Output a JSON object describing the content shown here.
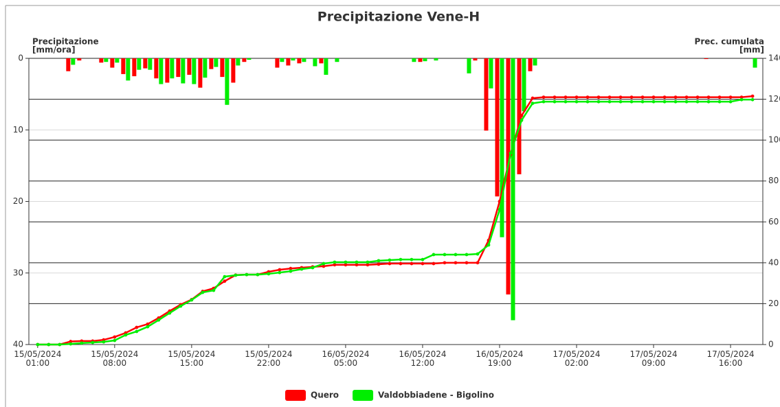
{
  "chart_data": {
    "type": "bar-line",
    "title": "Precipitazione Vene-H",
    "y_label": "Precipitazione",
    "y_unit": "[mm/ora]",
    "y2_label": "Prec. cumulata",
    "y2_unit": "[mm]",
    "ylim": [
      0,
      40
    ],
    "y_inverted": true,
    "yticks": [
      0,
      10,
      20,
      30,
      40
    ],
    "y2lim": [
      0,
      140
    ],
    "y2ticks": [
      0,
      20,
      40,
      60,
      80,
      100,
      120,
      140
    ],
    "grid": true,
    "legend": "bottom",
    "xlim": [
      "2024-05-15 00:12",
      "2024-05-17 18:56"
    ],
    "xticks": [
      {
        "value": "2024-05-15 01:00",
        "label": "15/05/2024 01:00"
      },
      {
        "value": "2024-05-15 08:00",
        "label": "15/05/2024 08:00"
      },
      {
        "value": "2024-05-15 15:00",
        "label": "15/05/2024 15:00"
      },
      {
        "value": "2024-05-15 22:00",
        "label": "15/05/2024 22:00"
      },
      {
        "value": "2024-05-16 05:00",
        "label": "16/05/2024 05:00"
      },
      {
        "value": "2024-05-16 12:00",
        "label": "16/05/2024 12:00"
      },
      {
        "value": "2024-05-16 19:00",
        "label": "16/05/2024 19:00"
      },
      {
        "value": "2024-05-17 02:00",
        "label": "17/05/2024 02:00"
      },
      {
        "value": "2024-05-17 09:00",
        "label": "17/05/2024 09:00"
      },
      {
        "value": "2024-05-17 16:00",
        "label": "17/05/2024 16:00"
      }
    ],
    "x": [
      "2024-05-15 01:00",
      "2024-05-15 02:00",
      "2024-05-15 03:00",
      "2024-05-15 04:00",
      "2024-05-15 05:00",
      "2024-05-15 06:00",
      "2024-05-15 07:00",
      "2024-05-15 08:00",
      "2024-05-15 09:00",
      "2024-05-15 10:00",
      "2024-05-15 11:00",
      "2024-05-15 12:00",
      "2024-05-15 13:00",
      "2024-05-15 14:00",
      "2024-05-15 15:00",
      "2024-05-15 16:00",
      "2024-05-15 17:00",
      "2024-05-15 18:00",
      "2024-05-15 19:00",
      "2024-05-15 20:00",
      "2024-05-15 21:00",
      "2024-05-15 22:00",
      "2024-05-15 23:00",
      "2024-05-16 00:00",
      "2024-05-16 01:00",
      "2024-05-16 02:00",
      "2024-05-16 03:00",
      "2024-05-16 04:00",
      "2024-05-16 05:00",
      "2024-05-16 06:00",
      "2024-05-16 07:00",
      "2024-05-16 08:00",
      "2024-05-16 09:00",
      "2024-05-16 10:00",
      "2024-05-16 11:00",
      "2024-05-16 12:00",
      "2024-05-16 13:00",
      "2024-05-16 14:00",
      "2024-05-16 15:00",
      "2024-05-16 16:00",
      "2024-05-16 17:00",
      "2024-05-16 18:00",
      "2024-05-16 19:00",
      "2024-05-16 20:00",
      "2024-05-16 21:00",
      "2024-05-16 22:00",
      "2024-05-16 23:00",
      "2024-05-17 00:00",
      "2024-05-17 01:00",
      "2024-05-17 02:00",
      "2024-05-17 03:00",
      "2024-05-17 04:00",
      "2024-05-17 05:00",
      "2024-05-17 06:00",
      "2024-05-17 07:00",
      "2024-05-17 08:00",
      "2024-05-17 09:00",
      "2024-05-17 10:00",
      "2024-05-17 11:00",
      "2024-05-17 12:00",
      "2024-05-17 13:00",
      "2024-05-17 14:00",
      "2024-05-17 15:00",
      "2024-05-17 16:00",
      "2024-05-17 17:00",
      "2024-05-17 18:00"
    ],
    "series": [
      {
        "name": "Quero",
        "color": "#ff0000",
        "values": [
          0,
          0,
          0,
          1.8,
          0.3,
          0,
          0.6,
          1.3,
          2.2,
          2.5,
          1.4,
          2.8,
          3.4,
          2.6,
          2.3,
          4.1,
          1.5,
          2.6,
          3.4,
          0.5,
          0,
          0,
          1.3,
          1.0,
          0.7,
          0,
          0.7,
          0,
          0,
          0,
          0,
          0,
          0,
          0,
          0,
          0.5,
          0,
          0,
          0,
          0,
          0.3,
          10.1,
          19.3,
          33,
          16.2,
          1.8,
          0,
          0,
          0,
          0,
          0,
          0,
          0,
          0,
          0,
          0,
          0,
          0,
          0,
          0,
          0,
          0.1,
          0,
          0,
          0,
          0
        ],
        "cumulative": [
          0,
          0,
          0,
          1.5,
          1.7,
          1.7,
          2.3,
          3.7,
          5.7,
          8.4,
          10,
          13,
          16.4,
          19.5,
          22,
          26,
          27.5,
          31,
          34,
          34.2,
          34.2,
          35.6,
          36.6,
          37.2,
          37.6,
          38,
          38.3,
          39,
          39,
          39,
          39,
          39.3,
          39.6,
          39.6,
          39.6,
          39.6,
          39.6,
          40,
          40,
          40,
          40,
          51,
          70,
          93,
          112,
          120.5,
          121,
          121,
          121,
          121,
          121,
          121,
          121,
          121,
          121,
          121,
          121,
          121,
          121,
          121,
          121,
          121,
          121,
          121,
          121,
          121.5
        ]
      },
      {
        "name": "Valdobbiadene - Bigolino",
        "color": "#00ee00",
        "values": [
          0,
          0,
          0,
          0.9,
          0,
          0,
          0.5,
          0.6,
          3.1,
          1.6,
          1.6,
          3.6,
          2.8,
          3.5,
          3.6,
          2.7,
          1.2,
          6.5,
          1.0,
          0.2,
          0,
          0,
          0.5,
          0.3,
          0.5,
          1.1,
          2.3,
          0.5,
          0,
          0,
          0,
          0,
          0,
          0,
          0.5,
          0.4,
          0.3,
          0,
          0,
          2.1,
          0,
          4.2,
          25,
          36.6,
          7.4,
          1.0,
          0,
          0,
          0,
          0,
          0,
          0,
          0,
          0,
          0,
          0,
          0,
          0,
          0,
          0,
          0,
          0,
          0,
          0,
          0,
          1.3
        ],
        "cumulative": [
          0,
          0,
          0,
          0.3,
          0.7,
          1,
          1.3,
          2,
          4.7,
          6.4,
          8.7,
          12,
          15.4,
          18.8,
          21.8,
          25.5,
          26.5,
          33.2,
          33.9,
          34.2,
          34.2,
          34.6,
          35.2,
          35.9,
          36.9,
          37.6,
          39.6,
          40.3,
          40.3,
          40.3,
          40.3,
          41,
          41.3,
          41.6,
          41.6,
          41.6,
          44,
          44,
          44,
          44,
          44.3,
          48.7,
          66,
          93.6,
          109.7,
          118,
          118.8,
          118.8,
          118.8,
          118.8,
          118.8,
          118.8,
          118.8,
          118.8,
          118.8,
          118.8,
          118.8,
          118.8,
          118.8,
          118.8,
          118.8,
          118.8,
          118.8,
          118.8,
          119.8,
          119.8
        ]
      }
    ]
  }
}
